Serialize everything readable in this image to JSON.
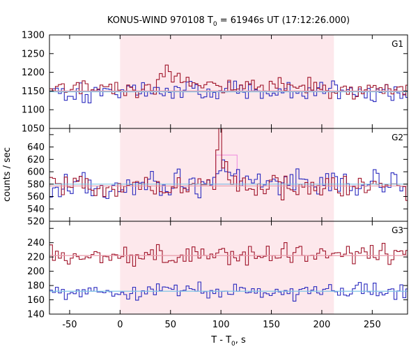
{
  "chart_data": {
    "type": "line",
    "title": "KONUS-WIND 970108 T",
    "title_sub": "0",
    "title_rest": " = 61946s UT (17:12:26.000)",
    "xlabel": "T - T",
    "xlabel_sub": "0",
    "xlabel_rest": ", s",
    "ylabel": "counts / sec",
    "xlim": [
      -70,
      285
    ],
    "x_ticks": [
      -50,
      0,
      50,
      100,
      150,
      200,
      250
    ],
    "x_tick_labels": [
      "-50",
      "0",
      "50",
      "100",
      "150",
      "200",
      "250"
    ],
    "highlight_interval": [
      0,
      212
    ],
    "colors": {
      "red_series": "#a0142a",
      "blue_series": "#2b2bbf",
      "red_fit": "#e89aaa",
      "blue_fit": "#7fc6e6",
      "highlight": "#fde8ec",
      "burst_box": "#ee88dd"
    },
    "panels": [
      {
        "name": "G1",
        "label": "G1",
        "ylim": [
          1050,
          1300
        ],
        "y_ticks": [
          1050,
          1100,
          1150,
          1200,
          1250,
          1300
        ],
        "y_tick_labels": [
          "1050",
          "1100",
          "1150",
          "1200",
          "1250",
          "1300"
        ],
        "red_level": 1155,
        "blue_level": 1150,
        "red_noise": 15,
        "blue_noise": 17,
        "red_events": [
          {
            "center": 45,
            "width": 4,
            "amplitude": 40
          },
          {
            "center": 55,
            "width": 12,
            "amplitude": 25
          },
          {
            "center": 130,
            "width": 40,
            "amplitude": 15
          }
        ],
        "blue_events": [],
        "fits": [
          {
            "series": "red",
            "level": 1150
          },
          {
            "series": "blue",
            "level": 1148
          }
        ],
        "burst_box": null
      },
      {
        "name": "G2",
        "label": "G2",
        "ylim": [
          520,
          670
        ],
        "y_ticks": [
          520,
          540,
          560,
          580,
          600,
          620,
          640,
          660
        ],
        "y_tick_labels": [
          "520",
          "540",
          "560",
          "580",
          "600",
          "620",
          "640",
          "660"
        ],
        "red_level": 576,
        "blue_level": 580,
        "red_noise": 11,
        "blue_noise": 12,
        "red_events": [
          {
            "center": 98,
            "width": 2,
            "amplitude": 80
          },
          {
            "center": 104,
            "width": 4,
            "amplitude": 40
          }
        ],
        "blue_events": [
          {
            "center": 104,
            "width": 8,
            "amplitude": 25
          }
        ],
        "fits": [
          {
            "series": "red",
            "level": 577
          },
          {
            "series": "blue",
            "level": 580
          }
        ],
        "burst_box": {
          "x": [
            95,
            116
          ],
          "y": [
            580,
            627
          ]
        }
      },
      {
        "name": "G3",
        "label": "G3",
        "ylim": [
          140,
          270
        ],
        "y_ticks": [
          140,
          160,
          180,
          200,
          220,
          240,
          260
        ],
        "y_tick_labels": [
          "140",
          "160",
          "180",
          "200",
          "220",
          "240",
          "260"
        ],
        "red_level": 223,
        "blue_level": 172,
        "red_noise": 9,
        "blue_noise": 7,
        "red_events": [],
        "blue_events": [],
        "fits": [
          {
            "series": "red",
            "level": 222
          },
          {
            "series": "blue",
            "level": 172
          }
        ],
        "burst_box": null
      }
    ]
  }
}
